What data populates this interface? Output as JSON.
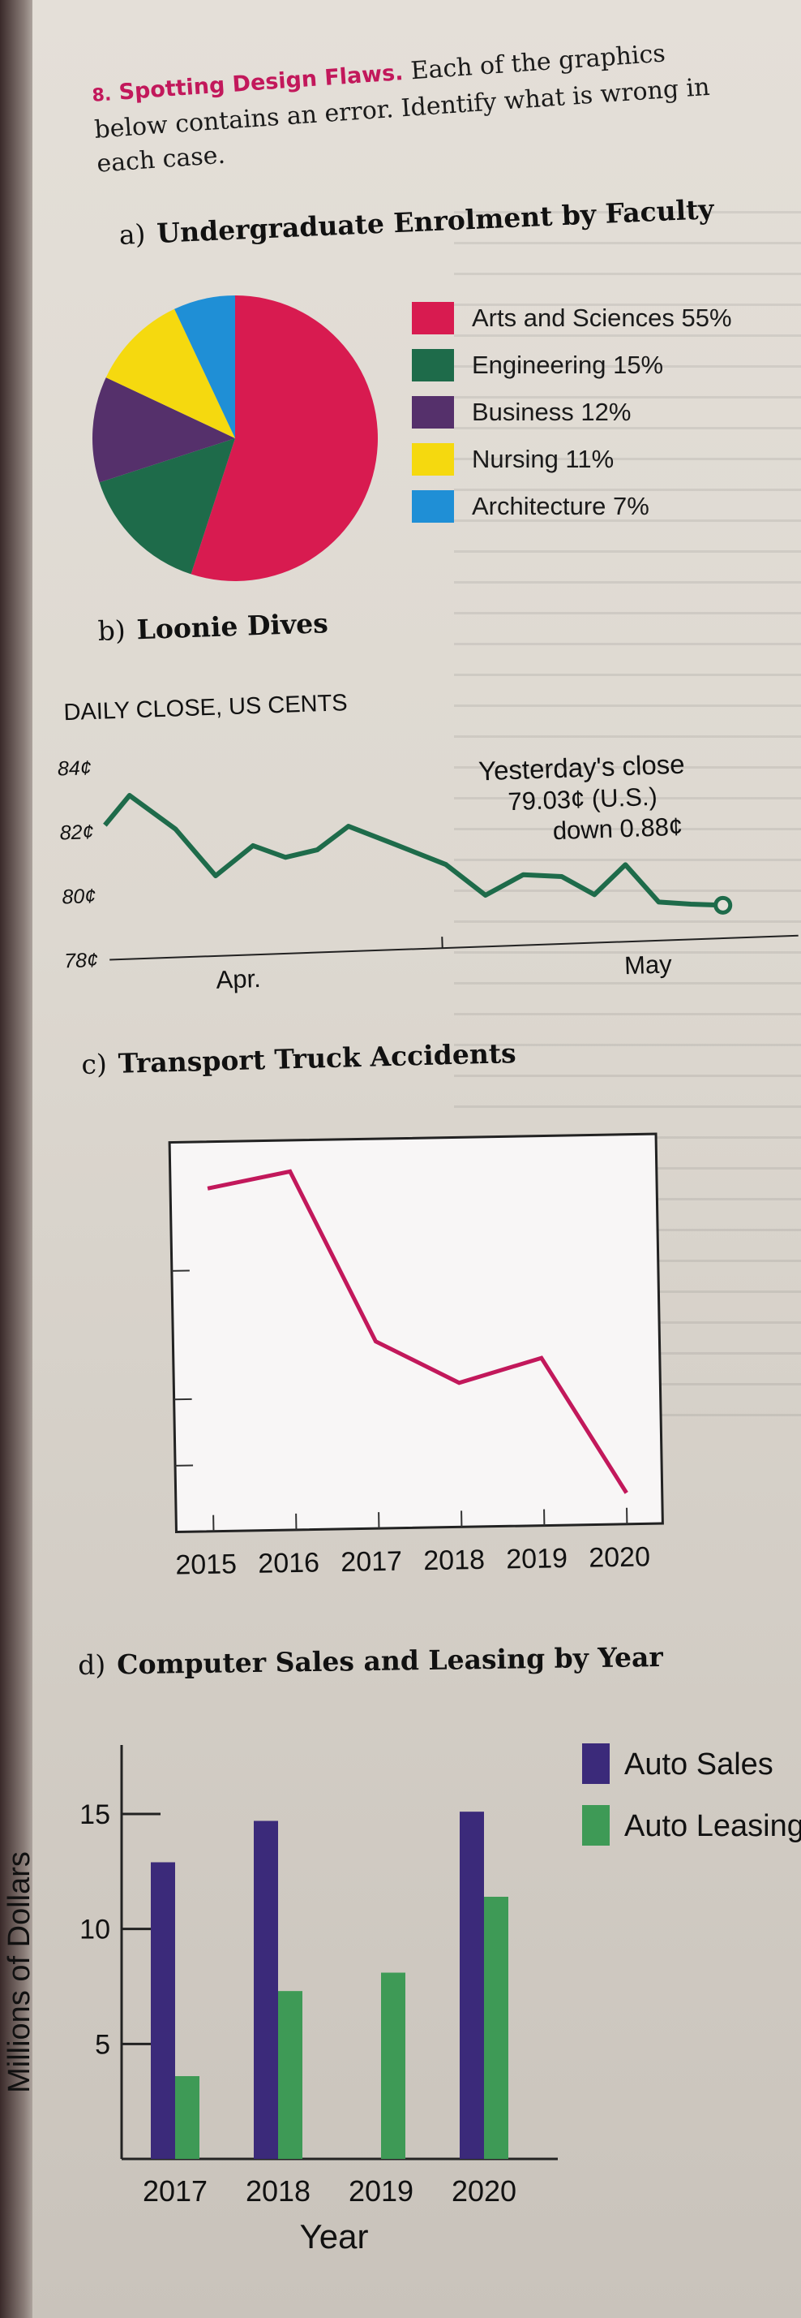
{
  "question": {
    "number": "8.",
    "title": "Spotting Design Flaws.",
    "text_line1": " Each of the graphics",
    "text_line2": "below contains an error. Identify what is wrong in",
    "text_line3": "each case."
  },
  "charts": {
    "a": {
      "letter": "a)",
      "title": "Undergraduate Enrolment by Faculty",
      "legend": [
        {
          "label": "Arts and Sciences 55%",
          "color": "#d81b50"
        },
        {
          "label": "Engineering 15%",
          "color": "#1e6b4a"
        },
        {
          "label": "Business 12%",
          "color": "#55306b"
        },
        {
          "label": "Nursing 11%",
          "color": "#f5d90f"
        },
        {
          "label": "Architecture 7%",
          "color": "#1f8fd6"
        }
      ]
    },
    "b": {
      "letter": "b)",
      "title": "Loonie Dives",
      "subtitle": "DAILY CLOSE, US CENTS",
      "annotation_line1": "Yesterday's close",
      "annotation_line2": "79.03¢ (U.S.)",
      "annotation_line3": "down 0.88¢",
      "line_color": "#1e6b4a"
    },
    "c": {
      "letter": "c)",
      "title": "Transport Truck Accidents",
      "line_color": "#c2185b"
    },
    "d": {
      "letter": "d)",
      "title": "Computer Sales and Leasing by Year",
      "xlabel": "Year",
      "ylabel": "Millions of Dollars",
      "colors": [
        "#3b2a7a",
        "#3e9a56"
      ]
    }
  },
  "chart_data": [
    {
      "type": "pie",
      "title": "Undergraduate Enrolment by Faculty",
      "categories": [
        "Arts and Sciences",
        "Engineering",
        "Business",
        "Nursing",
        "Architecture"
      ],
      "values": [
        55,
        15,
        12,
        11,
        7
      ],
      "legend_position": "right"
    },
    {
      "type": "line",
      "title": "Loonie Dives",
      "ylabel": "DAILY CLOSE, US CENTS",
      "yticks": [
        "84¢",
        "82¢",
        "80¢",
        "78¢"
      ],
      "ytick_values": [
        84,
        82,
        80,
        78
      ],
      "ylim": [
        78,
        84
      ],
      "xticks": [
        "Apr.",
        "May"
      ],
      "xtick_positions": [
        0.2,
        0.84
      ],
      "x": [
        0,
        0.04,
        0.11,
        0.17,
        0.23,
        0.28,
        0.33,
        0.38,
        0.45,
        0.53,
        0.59,
        0.65,
        0.71,
        0.76,
        0.81,
        0.86,
        0.91,
        0.96
      ],
      "y": [
        82.2,
        83.1,
        82.0,
        80.5,
        81.4,
        81.0,
        81.2,
        81.9,
        81.3,
        80.6,
        79.6,
        80.2,
        80.1,
        79.5,
        80.4,
        79.2,
        79.1,
        79.03
      ],
      "grid": false
    },
    {
      "type": "line",
      "title": "Transport Truck Accidents",
      "x": [
        "2015",
        "2016",
        "2017",
        "2018",
        "2019",
        "2020"
      ],
      "y": [
        0.88,
        0.92,
        0.48,
        0.37,
        0.43,
        0.08
      ],
      "y_units": "unlabeled axis (relative height)",
      "grid": false
    },
    {
      "type": "bar",
      "title": "Computer Sales and Leasing by Year",
      "xlabel": "Year",
      "ylabel": "Millions of Dollars",
      "categories": [
        "2017",
        "2018",
        "2019",
        "2020"
      ],
      "series": [
        {
          "name": "Auto Sales",
          "values": [
            12.9,
            14.7,
            0,
            15.1
          ]
        },
        {
          "name": "Auto Leasing",
          "values": [
            3.6,
            7.3,
            8.1,
            11.4
          ]
        }
      ],
      "yticks": [
        5,
        10,
        15
      ],
      "ylim": [
        0,
        18
      ],
      "legend_position": "right"
    }
  ]
}
